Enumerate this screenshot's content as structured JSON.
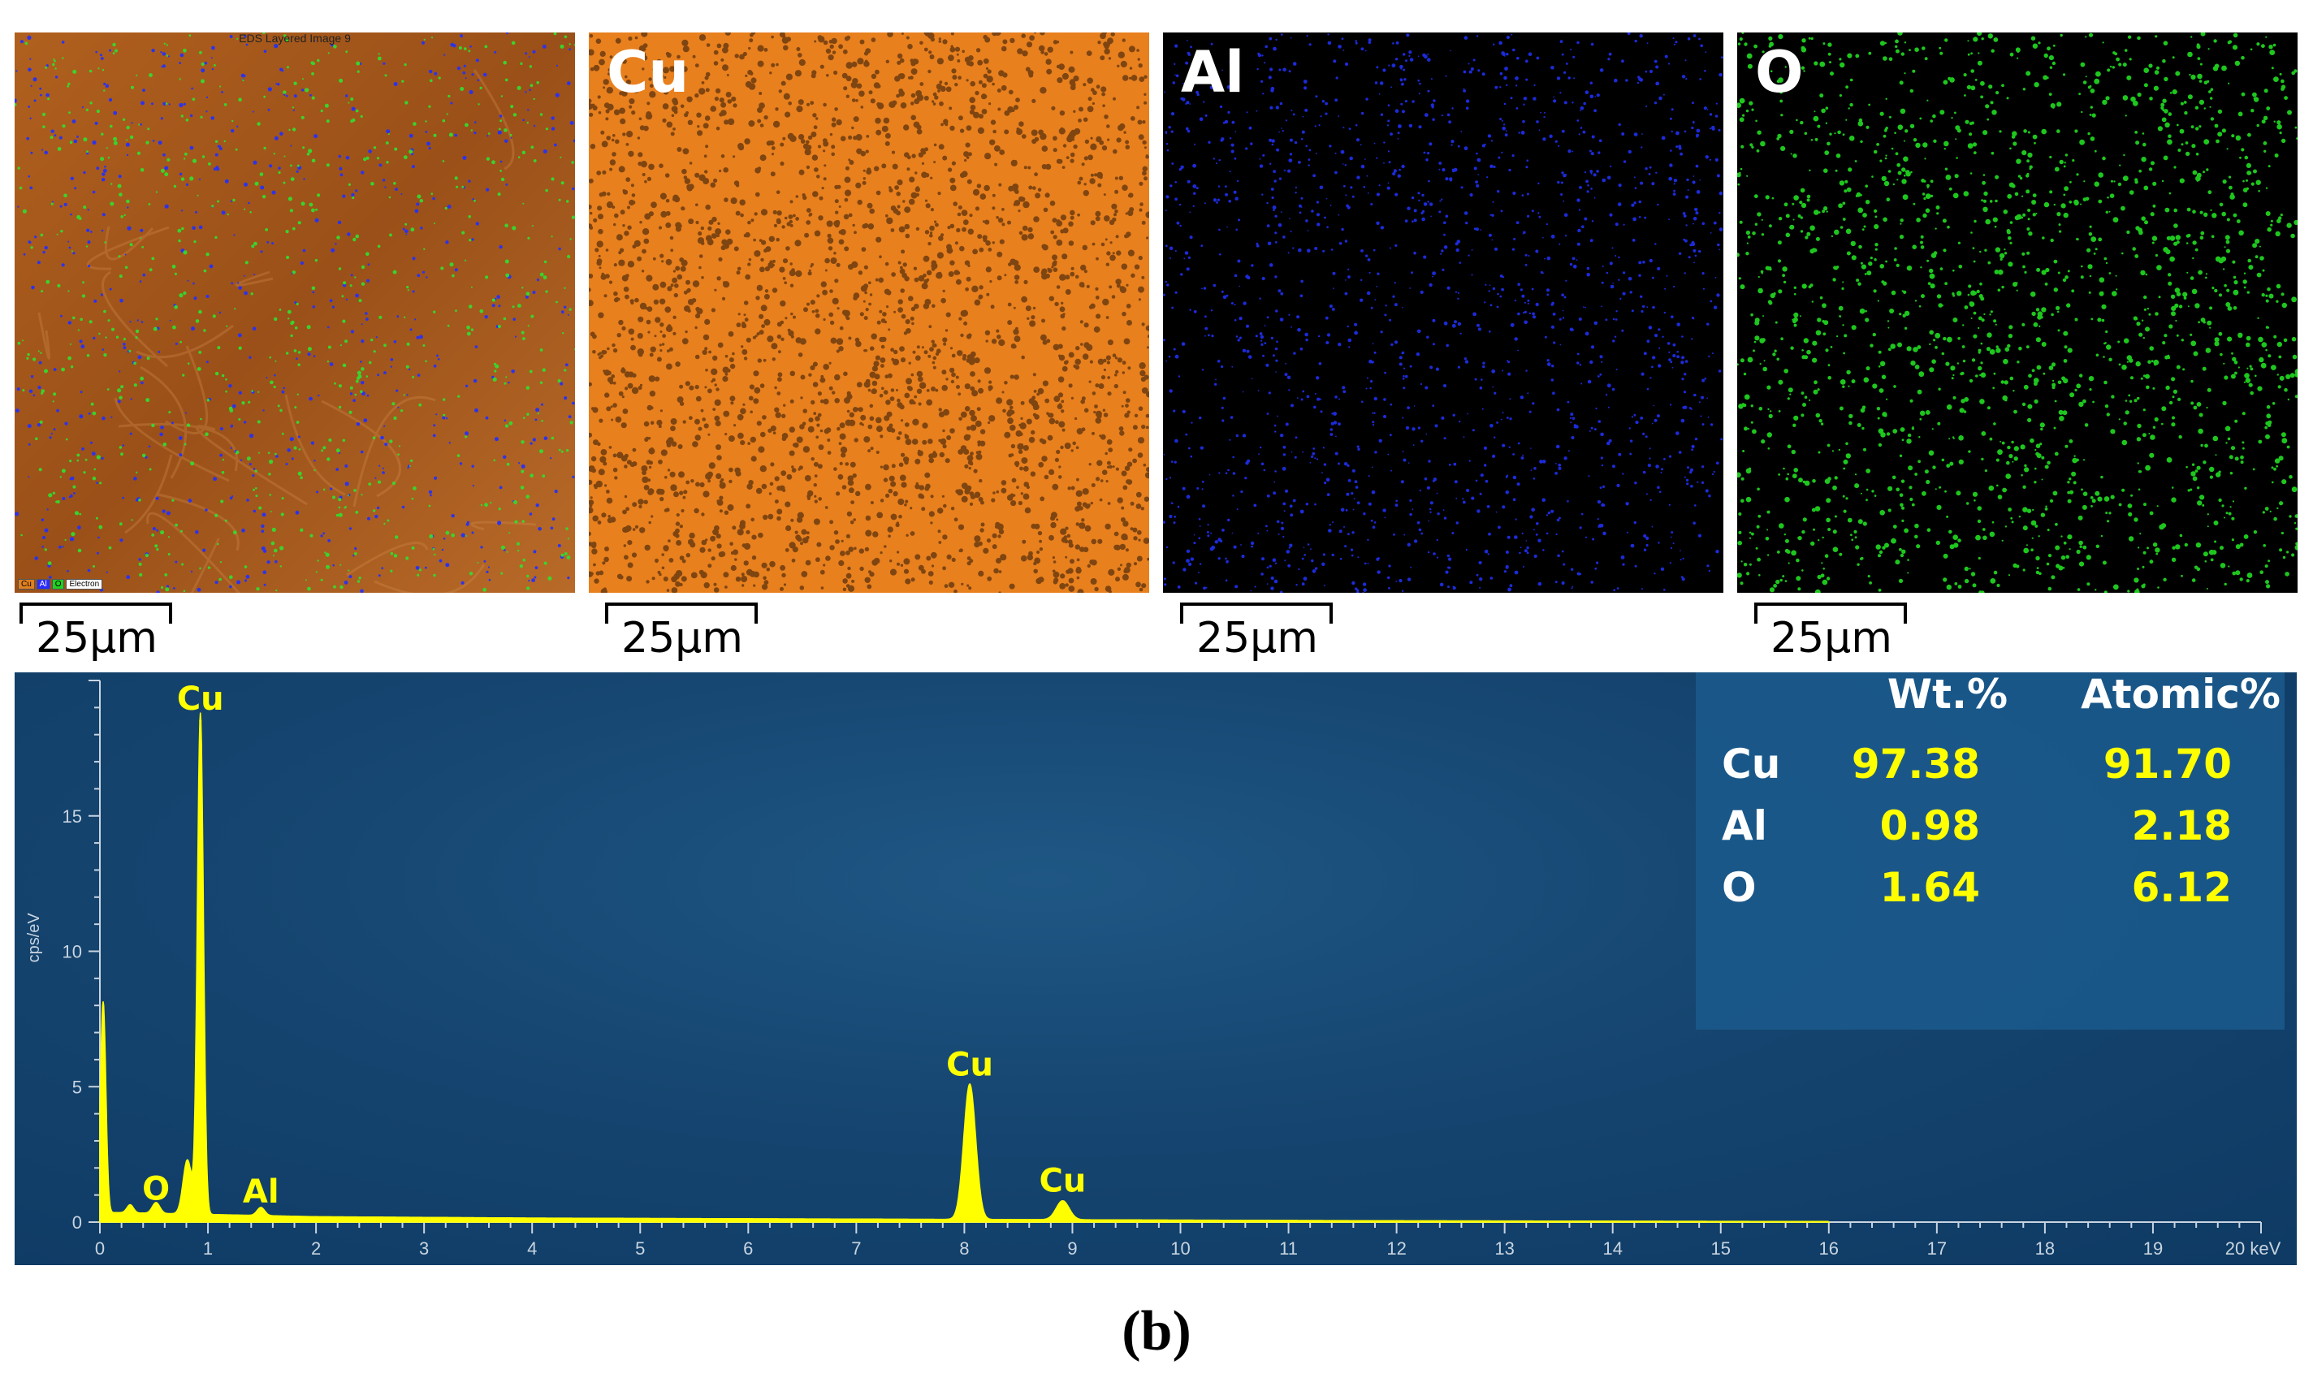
{
  "maps": [
    {
      "id": "layered",
      "title": "EDS Layered Image 9",
      "label": "",
      "scale": "25µm",
      "legend": [
        "Cu",
        "Al",
        "O",
        "Electron"
      ]
    },
    {
      "id": "cu",
      "title": "",
      "label": "Cu",
      "scale": "25µm"
    },
    {
      "id": "al",
      "title": "",
      "label": "Al",
      "scale": "25µm"
    },
    {
      "id": "o",
      "title": "",
      "label": "O",
      "scale": "25µm"
    }
  ],
  "colors": {
    "cu": "#e8801e",
    "al": "#2233ff",
    "o": "#22dd22",
    "spectrum": "#ffff00",
    "panel_bg": "#154570",
    "table_bg": "#1b5a8d",
    "text_white": "#ffffff",
    "axis_text": "#c8d4e0"
  },
  "composition_table": {
    "headers": [
      "",
      "Wt.%",
      "Atomic%"
    ],
    "rows": [
      {
        "element": "Cu",
        "wt": "97.38",
        "atomic": "91.70"
      },
      {
        "element": "Al",
        "wt": "0.98",
        "atomic": "2.18"
      },
      {
        "element": "O",
        "wt": "1.64",
        "atomic": "6.12"
      }
    ]
  },
  "chart_data": {
    "type": "line",
    "title": "",
    "xlabel": "",
    "ylabel": "cps/eV",
    "x_unit": "keV",
    "xlim": [
      0,
      20
    ],
    "ylim": [
      0,
      20
    ],
    "x_ticks": [
      0,
      1,
      2,
      3,
      4,
      5,
      6,
      7,
      8,
      9,
      10,
      11,
      12,
      13,
      14,
      15,
      16,
      17,
      18,
      19,
      20
    ],
    "x_tick_labels": [
      "0",
      "1",
      "2",
      "3",
      "4",
      "5",
      "6",
      "7",
      "8",
      "9",
      "10",
      "11",
      "12",
      "13",
      "14",
      "15",
      "16",
      "17",
      "18",
      "19",
      "20 keV"
    ],
    "y_ticks": [
      0,
      5,
      10,
      15
    ],
    "y_tick_labels": [
      "0",
      "5",
      "10",
      "15"
    ],
    "series": [
      {
        "peaks": [
          {
            "x": 0.03,
            "y": 7.8
          },
          {
            "x": 0.28,
            "y": 0.3
          },
          {
            "x": 0.52,
            "y": 0.4
          },
          {
            "x": 0.81,
            "y": 2.0
          },
          {
            "x": 0.93,
            "y": 18.5
          },
          {
            "x": 1.49,
            "y": 0.3
          },
          {
            "x": 8.05,
            "y": 5.0
          },
          {
            "x": 8.91,
            "y": 0.7
          }
        ],
        "background": [
          [
            0.2,
            0.35
          ],
          [
            2.0,
            0.2
          ],
          [
            4.0,
            0.15
          ],
          [
            8.0,
            0.1
          ],
          [
            12.0,
            0.05
          ],
          [
            16.0,
            0.02
          ],
          [
            20.0,
            0.01
          ]
        ]
      }
    ],
    "annotations": [
      {
        "text": "Cu",
        "x": 0.93,
        "y": 18.5
      },
      {
        "text": "O",
        "x": 0.52,
        "y": 0.4
      },
      {
        "text": "Al",
        "x": 1.49,
        "y": 0.3
      },
      {
        "text": "Cu",
        "x": 8.05,
        "y": 5.0
      },
      {
        "text": "Cu",
        "x": 8.91,
        "y": 0.7
      }
    ]
  },
  "caption": "(b)"
}
